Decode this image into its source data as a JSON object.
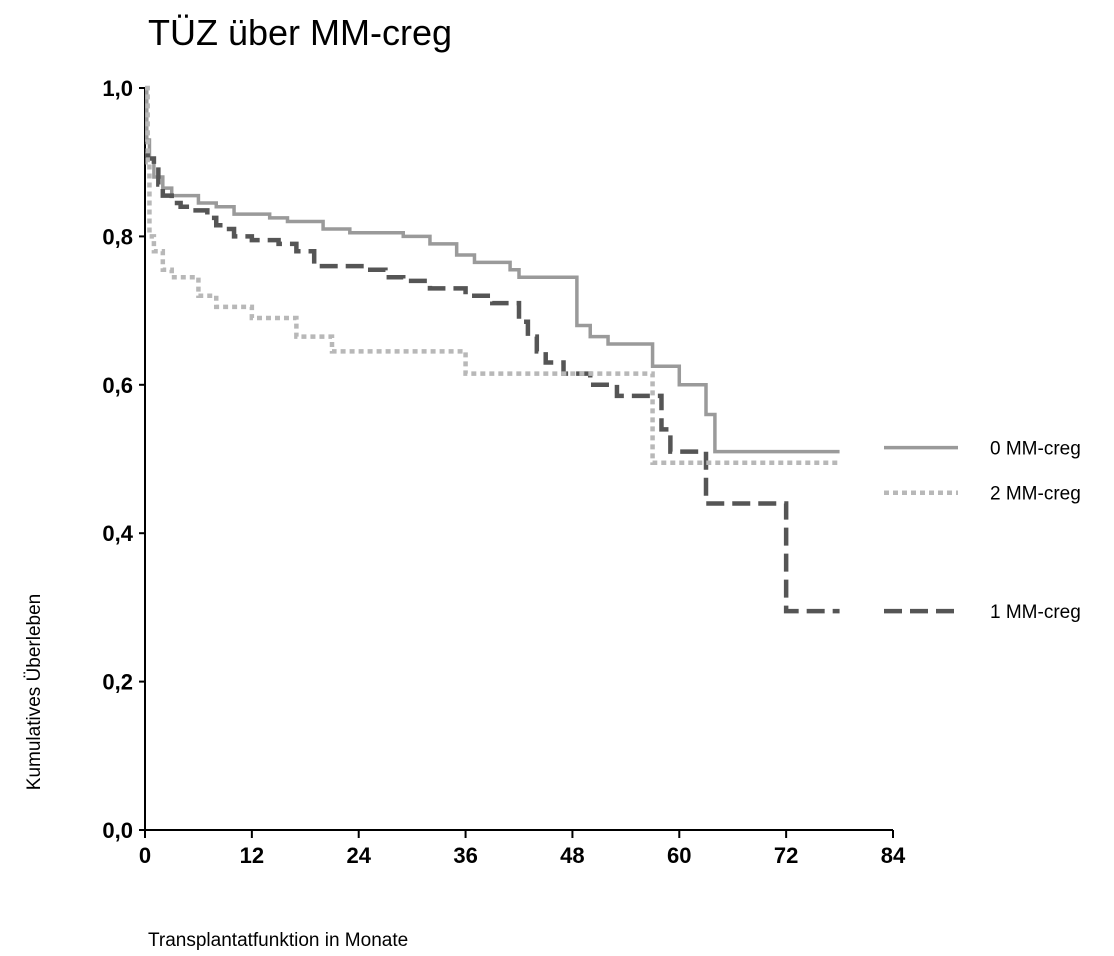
{
  "chart_data": {
    "type": "line",
    "subtype": "kaplan-meier-step",
    "title": "TÜZ über MM-creg",
    "xlabel": "Transplantatfunktion in Monate",
    "ylabel": "Kumulatives  Überleben",
    "xlim": [
      0,
      84
    ],
    "ylim": [
      0,
      1
    ],
    "x_ticks": [
      {
        "value": 0,
        "label": "0"
      },
      {
        "value": 12,
        "label": "12"
      },
      {
        "value": 24,
        "label": "24"
      },
      {
        "value": 36,
        "label": "36"
      },
      {
        "value": 48,
        "label": "48"
      },
      {
        "value": 60,
        "label": "60"
      },
      {
        "value": 72,
        "label": "72"
      },
      {
        "value": 84,
        "label": "84"
      }
    ],
    "y_ticks": [
      {
        "value": 0.0,
        "label": "0,0"
      },
      {
        "value": 0.2,
        "label": "0,2"
      },
      {
        "value": 0.4,
        "label": "0,4"
      },
      {
        "value": 0.6,
        "label": "0,6"
      },
      {
        "value": 0.8,
        "label": "0,8"
      },
      {
        "value": 1.0,
        "label": "1,0"
      }
    ],
    "grid": false,
    "legend_position": "right",
    "series": [
      {
        "name": "0 MM-creg",
        "color": "#9a9a9a",
        "style": "solid",
        "x": [
          0,
          0.2,
          0.5,
          1,
          2,
          3,
          6,
          8,
          10,
          14,
          16,
          20,
          23,
          26,
          29,
          32,
          35,
          37,
          41,
          42,
          48,
          48.5,
          50,
          52,
          57,
          60,
          63,
          64,
          78
        ],
        "y": [
          1.0,
          0.93,
          0.905,
          0.88,
          0.865,
          0.855,
          0.845,
          0.84,
          0.83,
          0.825,
          0.82,
          0.81,
          0.805,
          0.805,
          0.8,
          0.79,
          0.775,
          0.765,
          0.755,
          0.745,
          0.745,
          0.68,
          0.665,
          0.655,
          0.625,
          0.6,
          0.56,
          0.51,
          0.51
        ]
      },
      {
        "name": "1 MM-creg",
        "color": "#555555",
        "style": "dashed",
        "x": [
          0,
          0.3,
          1,
          1.5,
          2,
          3,
          4,
          5,
          7,
          8,
          9,
          10,
          12,
          15,
          17,
          19,
          22,
          25,
          27,
          29,
          32,
          36,
          39,
          42,
          43,
          44,
          45,
          47,
          50,
          53,
          58,
          59,
          60,
          63,
          67,
          72,
          78
        ],
        "y": [
          0.91,
          0.905,
          0.895,
          0.87,
          0.855,
          0.845,
          0.84,
          0.835,
          0.825,
          0.815,
          0.81,
          0.8,
          0.795,
          0.79,
          0.78,
          0.76,
          0.76,
          0.755,
          0.745,
          0.74,
          0.73,
          0.72,
          0.71,
          0.685,
          0.665,
          0.645,
          0.63,
          0.615,
          0.6,
          0.585,
          0.54,
          0.51,
          0.51,
          0.44,
          0.44,
          0.295,
          0.295
        ]
      },
      {
        "name": "2 MM-creg",
        "color": "#b8b8b8",
        "style": "dotted",
        "x": [
          0,
          0.3,
          0.5,
          1,
          2,
          3,
          6,
          8,
          12,
          17,
          21,
          33,
          36,
          47,
          57,
          58,
          78
        ],
        "y": [
          1.0,
          0.9,
          0.8,
          0.78,
          0.755,
          0.745,
          0.72,
          0.705,
          0.69,
          0.665,
          0.645,
          0.645,
          0.615,
          0.615,
          0.495,
          0.495,
          0.495
        ]
      }
    ],
    "legend_order": [
      "0 MM-creg",
      "2 MM-creg",
      "1 MM-creg"
    ]
  }
}
